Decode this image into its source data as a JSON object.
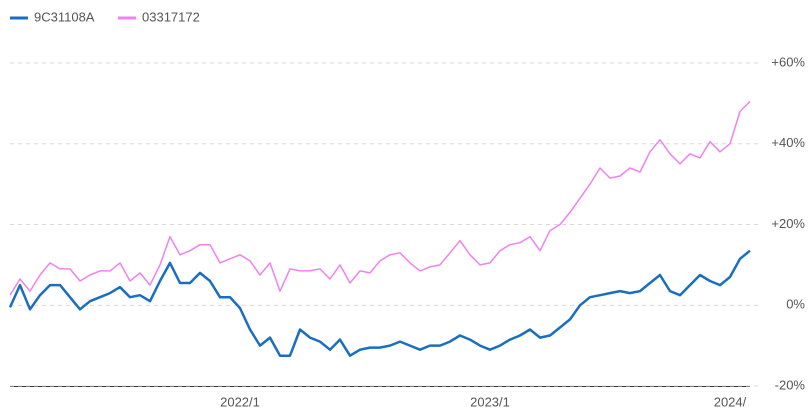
{
  "chart_data": {
    "type": "line",
    "categories": [
      null,
      null,
      null,
      null,
      null,
      null,
      null,
      null,
      null,
      null,
      null,
      null,
      null,
      null,
      null,
      null,
      null,
      null,
      null,
      null,
      null,
      null,
      null,
      "2022/1",
      null,
      null,
      null,
      null,
      null,
      null,
      null,
      null,
      null,
      null,
      null,
      null,
      null,
      null,
      null,
      null,
      null,
      null,
      null,
      null,
      null,
      null,
      null,
      null,
      "2023/1",
      null,
      null,
      null,
      null,
      null,
      null,
      null,
      null,
      null,
      null,
      null,
      null,
      null,
      null,
      null,
      null,
      null,
      null,
      null,
      null,
      null,
      null,
      null,
      "2024/",
      null,
      null
    ],
    "series": [
      {
        "name": "9C31108A",
        "color": "#1a6ec0",
        "values": [
          -0.5,
          5,
          -1,
          2.5,
          5,
          5,
          2,
          -1,
          1,
          2,
          3,
          4.5,
          2,
          2.5,
          1,
          6,
          10.5,
          5.5,
          5.5,
          8,
          6,
          2,
          2,
          -0.7,
          -6,
          -10,
          -8,
          -12.5,
          -12.5,
          -6,
          -8,
          -9,
          -11,
          -8.5,
          -12.5,
          -11,
          -10.5,
          -10.5,
          -10,
          -9,
          -10,
          -11,
          -10,
          -10,
          -9,
          -7.5,
          -8.5,
          -10,
          -11,
          -10,
          -8.5,
          -7.5,
          -6,
          -8,
          -7.5,
          -5.5,
          -3.5,
          0,
          2,
          2.5,
          3,
          3.5,
          3,
          3.5,
          5.5,
          7.5,
          3.5,
          2.5,
          5,
          7.5,
          6,
          5,
          7,
          11.5,
          13.5
        ]
      },
      {
        "name": "03317172",
        "color": "#ee82ee",
        "values": [
          2.5,
          6.5,
          3.5,
          7.5,
          10.5,
          9,
          9,
          6,
          7.5,
          8.5,
          8.5,
          10.5,
          6,
          8,
          5,
          10,
          17,
          12.5,
          13.5,
          15,
          15,
          10.5,
          11.5,
          12.5,
          11,
          7.5,
          10.5,
          3.5,
          9,
          8.5,
          8.5,
          9,
          6.5,
          10,
          5.5,
          8.5,
          8,
          11,
          12.5,
          13,
          10.5,
          8.5,
          9.5,
          10,
          13,
          16,
          12.5,
          10,
          10.5,
          13.5,
          15,
          15.5,
          17,
          13.5,
          18.5,
          20,
          23,
          26.5,
          30,
          34,
          31.5,
          32,
          34,
          33,
          38,
          41,
          37.5,
          35,
          37.5,
          36.5,
          40.5,
          38,
          40,
          48,
          50.5
        ]
      }
    ],
    "ylim": [
      -20,
      60
    ],
    "yticks": [
      {
        "value": -20,
        "label": "-20%"
      },
      {
        "value": 0,
        "label": "0%"
      },
      {
        "value": 20,
        "label": "+20%"
      },
      {
        "value": 40,
        "label": "+40%"
      },
      {
        "value": 60,
        "label": "+60%"
      }
    ],
    "grid": true
  }
}
